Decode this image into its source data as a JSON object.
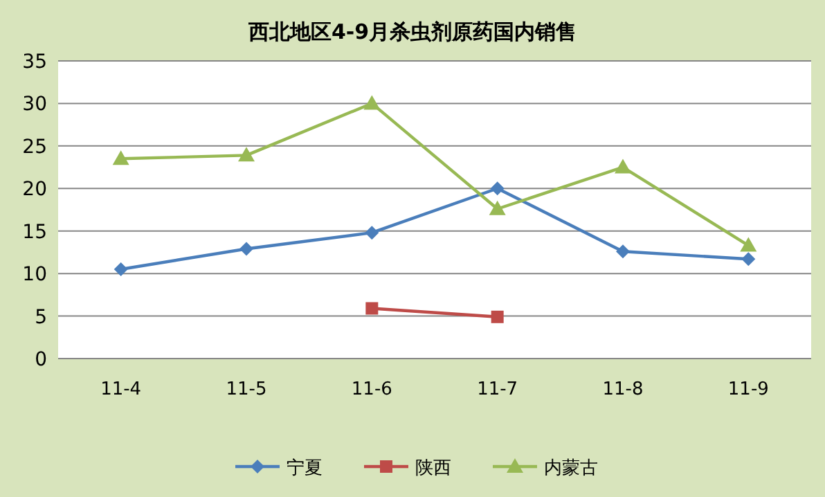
{
  "chart_data": {
    "type": "line",
    "title": "西北地区4-9月杀虫剂原药国内销售",
    "categories": [
      "11-4",
      "11-5",
      "11-6",
      "11-7",
      "11-8",
      "11-9"
    ],
    "series": [
      {
        "name": "宁夏",
        "color": "#4a7ebb",
        "marker": "diamond",
        "values": [
          10.5,
          12.9,
          14.8,
          20,
          12.6,
          11.7
        ]
      },
      {
        "name": "陕西",
        "color": "#be4b48",
        "marker": "square",
        "values": [
          null,
          null,
          5.9,
          4.9,
          null,
          null
        ]
      },
      {
        "name": "内蒙古",
        "color": "#98b954",
        "marker": "triangle",
        "values": [
          23.5,
          23.9,
          30,
          17.6,
          22.5,
          13.3
        ]
      }
    ],
    "ylim": [
      0,
      35
    ],
    "yticks": [
      0,
      5,
      10,
      15,
      20,
      25,
      30,
      35
    ],
    "grid": "y",
    "legend": "bottom",
    "line_style": "solid"
  }
}
